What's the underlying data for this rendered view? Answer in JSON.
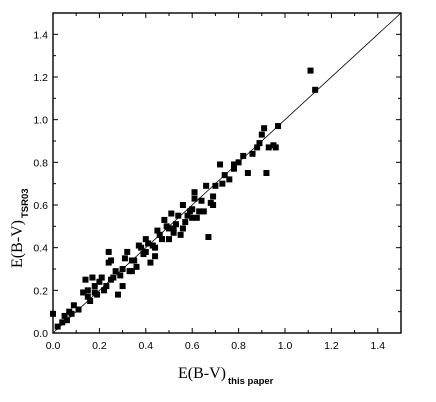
{
  "chart_data": {
    "type": "scatter",
    "title": "",
    "xlabel": {
      "main": "E(B-V)",
      "sub": "this paper"
    },
    "ylabel": {
      "main": "E(B-V)",
      "sub": "TSR03"
    },
    "xlim": [
      0.0,
      1.5
    ],
    "ylim": [
      0.0,
      1.5
    ],
    "xticks": [
      "0.0",
      "0.2",
      "0.4",
      "0.6",
      "0.8",
      "1.0",
      "1.2",
      "1.4"
    ],
    "yticks": [
      "0.0",
      "0.2",
      "0.4",
      "0.6",
      "0.8",
      "1.0",
      "1.2",
      "1.4"
    ],
    "grid": false,
    "reference_line": {
      "x": [
        0.0,
        1.5
      ],
      "y": [
        0.0,
        1.5
      ]
    },
    "marker": "square",
    "marker_color": "#000000",
    "points": [
      [
        0.0,
        0.09
      ],
      [
        0.02,
        0.03
      ],
      [
        0.04,
        0.05
      ],
      [
        0.05,
        0.08
      ],
      [
        0.06,
        0.06
      ],
      [
        0.07,
        0.1
      ],
      [
        0.08,
        0.09
      ],
      [
        0.09,
        0.13
      ],
      [
        0.11,
        0.11
      ],
      [
        0.13,
        0.19
      ],
      [
        0.14,
        0.25
      ],
      [
        0.15,
        0.17
      ],
      [
        0.16,
        0.15
      ],
      [
        0.17,
        0.26
      ],
      [
        0.18,
        0.19
      ],
      [
        0.19,
        0.18
      ],
      [
        0.2,
        0.24
      ],
      [
        0.21,
        0.26
      ],
      [
        0.22,
        0.2
      ],
      [
        0.23,
        0.22
      ],
      [
        0.24,
        0.38
      ],
      [
        0.24,
        0.33
      ],
      [
        0.25,
        0.25
      ],
      [
        0.26,
        0.26
      ],
      [
        0.27,
        0.29
      ],
      [
        0.28,
        0.18
      ],
      [
        0.29,
        0.27
      ],
      [
        0.3,
        0.3
      ],
      [
        0.31,
        0.35
      ],
      [
        0.32,
        0.38
      ],
      [
        0.33,
        0.29
      ],
      [
        0.34,
        0.34
      ],
      [
        0.35,
        0.34
      ],
      [
        0.36,
        0.31
      ],
      [
        0.37,
        0.41
      ],
      [
        0.38,
        0.4
      ],
      [
        0.39,
        0.37
      ],
      [
        0.4,
        0.38
      ],
      [
        0.41,
        0.42
      ],
      [
        0.42,
        0.33
      ],
      [
        0.43,
        0.41
      ],
      [
        0.44,
        0.4
      ],
      [
        0.45,
        0.48
      ],
      [
        0.46,
        0.46
      ],
      [
        0.47,
        0.44
      ],
      [
        0.48,
        0.53
      ],
      [
        0.49,
        0.5
      ],
      [
        0.5,
        0.49
      ],
      [
        0.51,
        0.56
      ],
      [
        0.52,
        0.47
      ],
      [
        0.53,
        0.51
      ],
      [
        0.54,
        0.55
      ],
      [
        0.55,
        0.46
      ],
      [
        0.56,
        0.49
      ],
      [
        0.57,
        0.52
      ],
      [
        0.58,
        0.55
      ],
      [
        0.59,
        0.57
      ],
      [
        0.6,
        0.58
      ],
      [
        0.61,
        0.63
      ],
      [
        0.62,
        0.54
      ],
      [
        0.63,
        0.57
      ],
      [
        0.64,
        0.62
      ],
      [
        0.65,
        0.57
      ],
      [
        0.66,
        0.69
      ],
      [
        0.67,
        0.45
      ],
      [
        0.68,
        0.61
      ],
      [
        0.69,
        0.64
      ],
      [
        0.7,
        0.69
      ],
      [
        0.72,
        0.79
      ],
      [
        0.73,
        0.7
      ],
      [
        0.74,
        0.74
      ],
      [
        0.76,
        0.72
      ],
      [
        0.78,
        0.77
      ],
      [
        0.8,
        0.8
      ],
      [
        0.82,
        0.83
      ],
      [
        0.84,
        0.75
      ],
      [
        0.86,
        0.84
      ],
      [
        0.88,
        0.87
      ],
      [
        0.89,
        0.89
      ],
      [
        0.9,
        0.93
      ],
      [
        0.91,
        0.96
      ],
      [
        0.92,
        0.75
      ],
      [
        0.93,
        0.87
      ],
      [
        0.95,
        0.88
      ],
      [
        0.96,
        0.87
      ],
      [
        0.97,
        0.97
      ],
      [
        1.11,
        1.23
      ],
      [
        1.13,
        1.14
      ],
      [
        0.44,
        0.36
      ],
      [
        0.5,
        0.44
      ],
      [
        0.56,
        0.6
      ],
      [
        0.61,
        0.66
      ],
      [
        0.3,
        0.22
      ],
      [
        0.25,
        0.34
      ],
      [
        0.18,
        0.22
      ],
      [
        0.15,
        0.2
      ],
      [
        0.34,
        0.29
      ],
      [
        0.4,
        0.44
      ],
      [
        0.52,
        0.49
      ],
      [
        0.6,
        0.54
      ],
      [
        0.69,
        0.6
      ],
      [
        0.78,
        0.79
      ]
    ]
  }
}
